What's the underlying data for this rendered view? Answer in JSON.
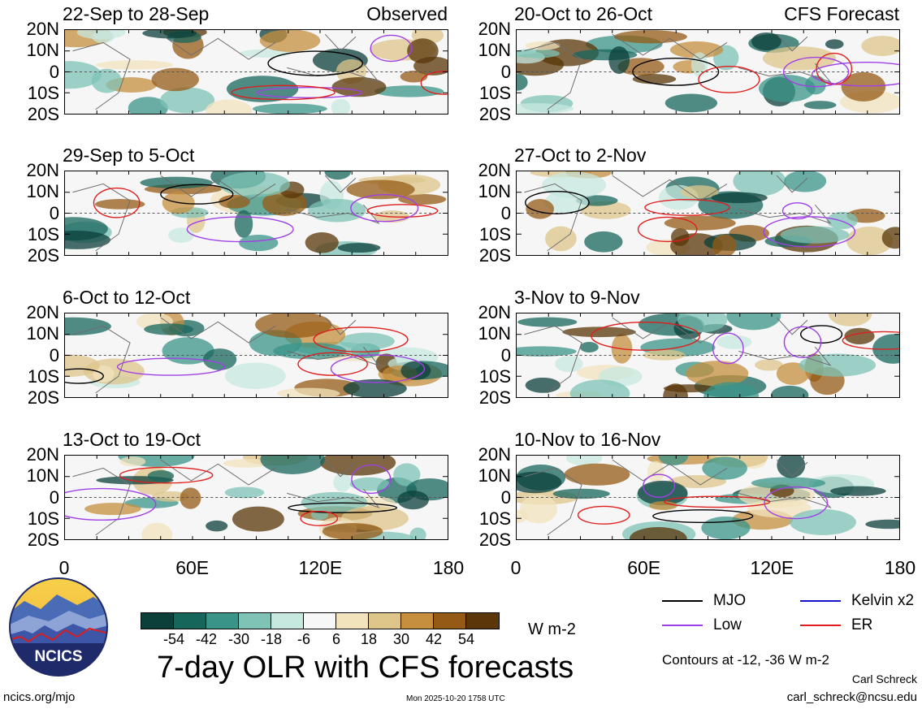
{
  "chart_data": {
    "type": "heatmap",
    "title": "7-day OLR with CFS forecasts",
    "units": "W m-2",
    "x_ticks": [
      "0",
      "60E",
      "120E",
      "180"
    ],
    "y_ticks": [
      "20N",
      "10N",
      "0",
      "10S",
      "20S"
    ],
    "panels": [
      {
        "period": "22-Sep to 28-Sep",
        "tag": "Observed",
        "column": "left",
        "row": 0
      },
      {
        "period": "29-Sep to 5-Oct",
        "tag": "",
        "column": "left",
        "row": 1
      },
      {
        "period": "6-Oct to 12-Oct",
        "tag": "",
        "column": "left",
        "row": 2
      },
      {
        "period": "13-Oct to 19-Oct",
        "tag": "",
        "column": "left",
        "row": 3
      },
      {
        "period": "20-Oct to 26-Oct",
        "tag": "CFS Forecast",
        "column": "right",
        "row": 0
      },
      {
        "period": "27-Oct to 2-Nov",
        "tag": "",
        "column": "right",
        "row": 1
      },
      {
        "period": "3-Nov to 9-Nov",
        "tag": "",
        "column": "right",
        "row": 2
      },
      {
        "period": "10-Nov to 16-Nov",
        "tag": "",
        "column": "right",
        "row": 3
      }
    ],
    "colorbar": {
      "labels": [
        "-54",
        "-42",
        "-30",
        "-18",
        "-6",
        "6",
        "18",
        "30",
        "42",
        "54"
      ],
      "colors": [
        "#0b3f3a",
        "#17665c",
        "#3a9488",
        "#7ec3b6",
        "#c7e8df",
        "#f7f7f7",
        "#f2e3bd",
        "#dec68b",
        "#c58f3d",
        "#955b16",
        "#5a3608"
      ]
    },
    "legend": [
      {
        "label": "MJO",
        "color": "#000000"
      },
      {
        "label": "Kelvin x2",
        "color": "#1414c8"
      },
      {
        "label": "Low",
        "color": "#a040e6"
      },
      {
        "label": "ER",
        "color": "#e01e1e"
      }
    ],
    "contour_note": "Contours at -12, -36 W m-2"
  },
  "logo": {
    "text": "NCICS"
  },
  "footer": {
    "url": "ncics.org/mjo",
    "timestamp": "Mon 2025-10-20 1758 UTC",
    "author": "Carl Schreck",
    "email": "carl_schreck@ncsu.edu"
  }
}
